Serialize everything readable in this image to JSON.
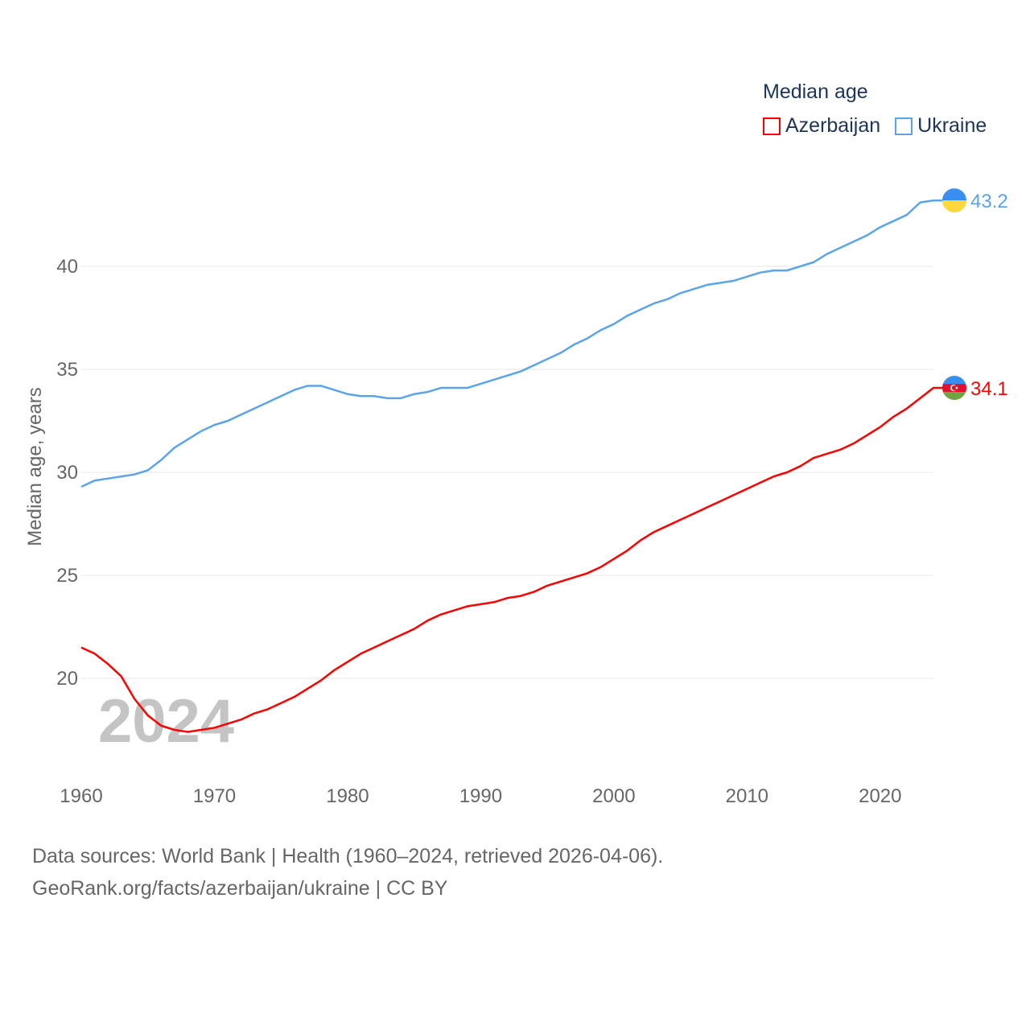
{
  "chart_data": {
    "type": "line",
    "title": "Median age",
    "xlabel": "",
    "ylabel": "Median age, years",
    "xlim": [
      1960,
      2024
    ],
    "ylim": [
      15.5,
      44
    ],
    "xticks": [
      "1960",
      "1970",
      "1980",
      "1990",
      "2000",
      "2010",
      "2020"
    ],
    "yticks": [
      "20",
      "25",
      "30",
      "35",
      "40"
    ],
    "grid": true,
    "legend_position": "top-right",
    "year_watermark": "2024",
    "x": [
      1960,
      1961,
      1962,
      1963,
      1964,
      1965,
      1966,
      1967,
      1968,
      1969,
      1970,
      1971,
      1972,
      1973,
      1974,
      1975,
      1976,
      1977,
      1978,
      1979,
      1980,
      1981,
      1982,
      1983,
      1984,
      1985,
      1986,
      1987,
      1988,
      1989,
      1990,
      1991,
      1992,
      1993,
      1994,
      1995,
      1996,
      1997,
      1998,
      1999,
      2000,
      2001,
      2002,
      2003,
      2004,
      2005,
      2006,
      2007,
      2008,
      2009,
      2010,
      2011,
      2012,
      2013,
      2014,
      2015,
      2016,
      2017,
      2018,
      2019,
      2020,
      2021,
      2022,
      2023,
      2024
    ],
    "series": [
      {
        "name": "Azerbaijan",
        "color": "#ff0000",
        "end_label": "34.1",
        "values": [
          21.5,
          21.2,
          20.7,
          20.1,
          19.0,
          18.2,
          17.7,
          17.5,
          17.4,
          17.5,
          17.6,
          17.8,
          18.0,
          18.3,
          18.5,
          18.8,
          19.1,
          19.5,
          19.9,
          20.4,
          20.8,
          21.2,
          21.5,
          21.8,
          22.1,
          22.4,
          22.8,
          23.1,
          23.3,
          23.5,
          23.6,
          23.7,
          23.9,
          24.0,
          24.2,
          24.5,
          24.7,
          24.9,
          25.1,
          25.4,
          25.8,
          26.2,
          26.7,
          27.1,
          27.4,
          27.7,
          28.0,
          28.3,
          28.6,
          28.9,
          29.2,
          29.5,
          29.8,
          30.0,
          30.3,
          30.7,
          30.9,
          31.1,
          31.4,
          31.8,
          32.2,
          32.7,
          33.1,
          33.6,
          34.1
        ]
      },
      {
        "name": "Ukraine",
        "color": "#5ba4ea",
        "end_label": "43.2",
        "values": [
          29.3,
          29.6,
          29.7,
          29.8,
          29.9,
          30.1,
          30.6,
          31.2,
          31.6,
          32.0,
          32.3,
          32.5,
          32.8,
          33.1,
          33.4,
          33.7,
          34.0,
          34.2,
          34.2,
          34.0,
          33.8,
          33.7,
          33.7,
          33.6,
          33.6,
          33.8,
          33.9,
          34.1,
          34.1,
          34.1,
          34.3,
          34.5,
          34.7,
          34.9,
          35.2,
          35.5,
          35.8,
          36.2,
          36.5,
          36.9,
          37.2,
          37.6,
          37.9,
          38.2,
          38.4,
          38.7,
          38.9,
          39.1,
          39.2,
          39.3,
          39.5,
          39.7,
          39.8,
          39.8,
          40.0,
          40.2,
          40.6,
          40.9,
          41.2,
          41.5,
          41.9,
          42.2,
          42.5,
          43.1,
          43.2
        ]
      }
    ]
  },
  "footer": {
    "line1": "Data sources: World Bank | Health (1960–2024, retrieved 2026-04-06).",
    "line2": "GeoRank.org/facts/azerbaijan/ukraine | CC BY"
  }
}
